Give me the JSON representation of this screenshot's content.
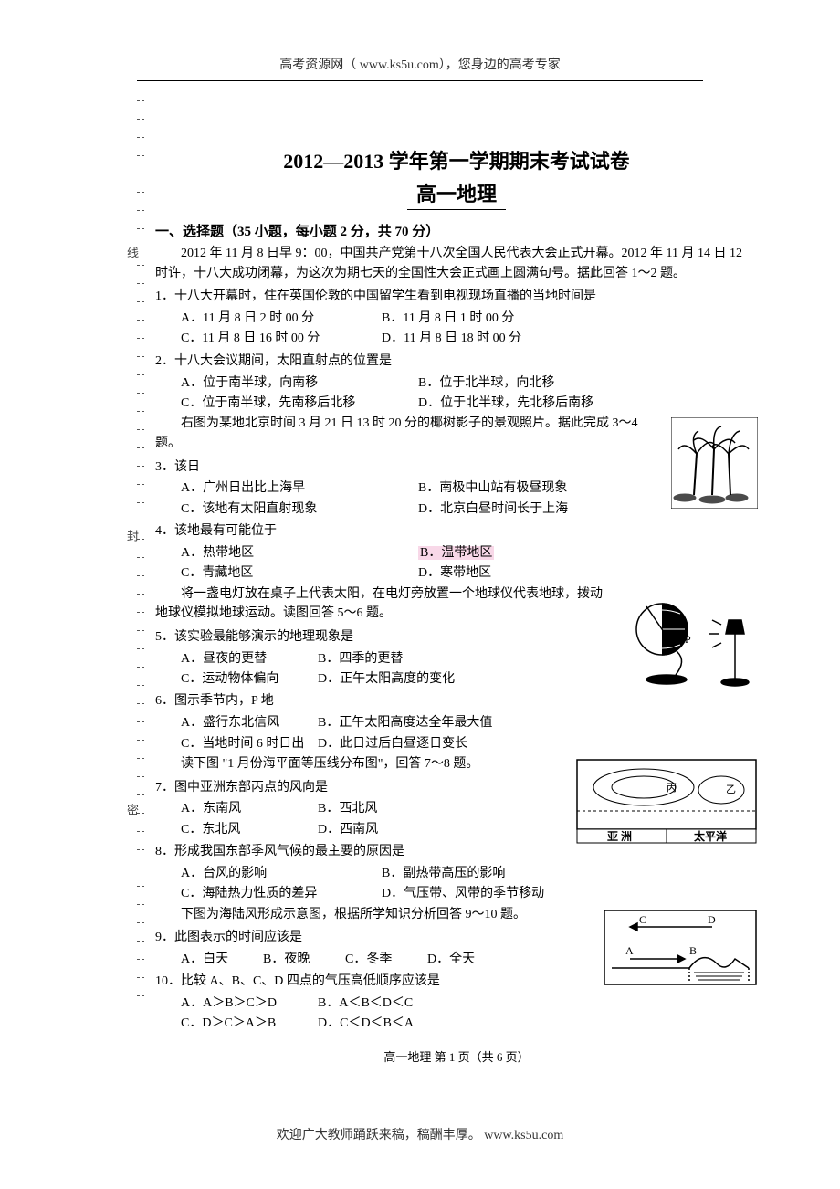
{
  "header": {
    "text": "高考资源网（ www.ks5u.com），您身边的高考专家"
  },
  "title": "2012—2013 学年第一学期期末考试试卷",
  "subtitle": "高一地理",
  "section1": {
    "heading": "一、选择题（35 小题，每小题 2 分，共 70 分）",
    "passage1": "2012 年 11 月 8 日早 9：00，中国共产党第十八次全国人民代表大会正式开幕。2012 年 11 月 14 日 12 时许，十八大成功闭幕，为这次为期七天的全国性大会正式画上圆满句号。据此回答 1～2 题。",
    "q1": {
      "stem": "1．十八大开幕时，住在英国伦敦的中国留学生看到电视现场直播的当地时间是",
      "A": "A．11 月 8 日 2 时 00 分",
      "B": "B．11 月 8 日 1 时 00 分",
      "C": "C．11 月 8 日 16 时 00 分",
      "D": "D．11 月 8 日 18 时 00 分"
    },
    "q2": {
      "stem": "2．十八大会议期间，太阳直射点的位置是",
      "A": "A．位于南半球，向南移",
      "B": "B．位于北半球，向北移",
      "C": "C．位于南半球，先南移后北移",
      "D": "D．位于北半球，先北移后南移"
    },
    "passage2": "右图为某地北京时间 3 月 21 日 13 时 20 分的椰树影子的景观照片。据此完成 3～4 题。",
    "q3": {
      "stem": "3．该日",
      "A": "A．广州日出比上海早",
      "B": "B．南极中山站有极昼现象",
      "C": "C．该地有太阳直射现象",
      "D": "D．北京白昼时间长于上海"
    },
    "q4": {
      "stem": "4．该地最有可能位于",
      "A": "A．热带地区",
      "B": "B．温带地区",
      "C": "C．青藏地区",
      "D": "D．寒带地区"
    },
    "passage3": "将一盏电灯放在桌子上代表太阳，在电灯旁放置一个地球仪代表地球，拨动地球仪模拟地球运动。读图回答 5～6 题。",
    "q5": {
      "stem": "5．该实验最能够演示的地理现象是",
      "A": "A．昼夜的更替",
      "B": "B．四季的更替",
      "C": "C．运动物体偏向",
      "D": "D．正午太阳高度的变化"
    },
    "q6": {
      "stem": "6．图示季节内，P 地",
      "A": "A．盛行东北信风",
      "B": "B．正午太阳高度达全年最大值",
      "C": "C．当地时间 6 时日出",
      "D": "D．此日过后白昼逐日变长"
    },
    "passage4": "读下图 \"1 月份海平面等压线分布图\"，回答 7～8 题。",
    "q7": {
      "stem": "7．图中亚洲东部丙点的风向是",
      "A": "A．东南风",
      "B": "B．西北风",
      "C": "C．东北风",
      "D": "D．西南风"
    },
    "q8": {
      "stem": "8．形成我国东部季风气候的最主要的原因是",
      "A": "A．台风的影响",
      "B": "B．副热带高压的影响",
      "C": "C．海陆热力性质的差异",
      "D": "D．气压带、风带的季节移动"
    },
    "passage5": "下图为海陆风形成示意图，根据所学知识分析回答 9～10 题。",
    "q9": {
      "stem": "9．此图表示的时间应该是",
      "A": "A．白天",
      "B": "B．夜晚",
      "C": "C．冬季",
      "D": "D．全天"
    },
    "q10": {
      "stem": "10．比较 A、B、C、D 四点的气压高低顺序应该是",
      "A": "A．A＞B＞C＞D",
      "B": "B．A＜B＜D＜C",
      "C": "C．D＞C＞A＞B",
      "D": "D．C＜D＜B＜A"
    }
  },
  "pageInfo": "高一地理  第 1 页（共 6 页）",
  "footer": "欢迎广大教师踊跃来稿，稿酬丰厚。  www.ks5u.com",
  "bindingLabels": {
    "l1": "线",
    "l2": "封",
    "l3": "密"
  },
  "figures": {
    "palm": {
      "stroke": "#000000",
      "fill": "#000000",
      "bg": "#ffffff"
    },
    "globe": {
      "stroke": "#000000",
      "pLabel": "P"
    },
    "map": {
      "stroke": "#000000",
      "labelAsia": "亚  洲",
      "labelPacific": "太平洋",
      "markBing": "丙",
      "markYi": "乙"
    },
    "breeze": {
      "stroke": "#000000",
      "A": "A",
      "B": "B",
      "C": "C",
      "D": "D"
    }
  }
}
